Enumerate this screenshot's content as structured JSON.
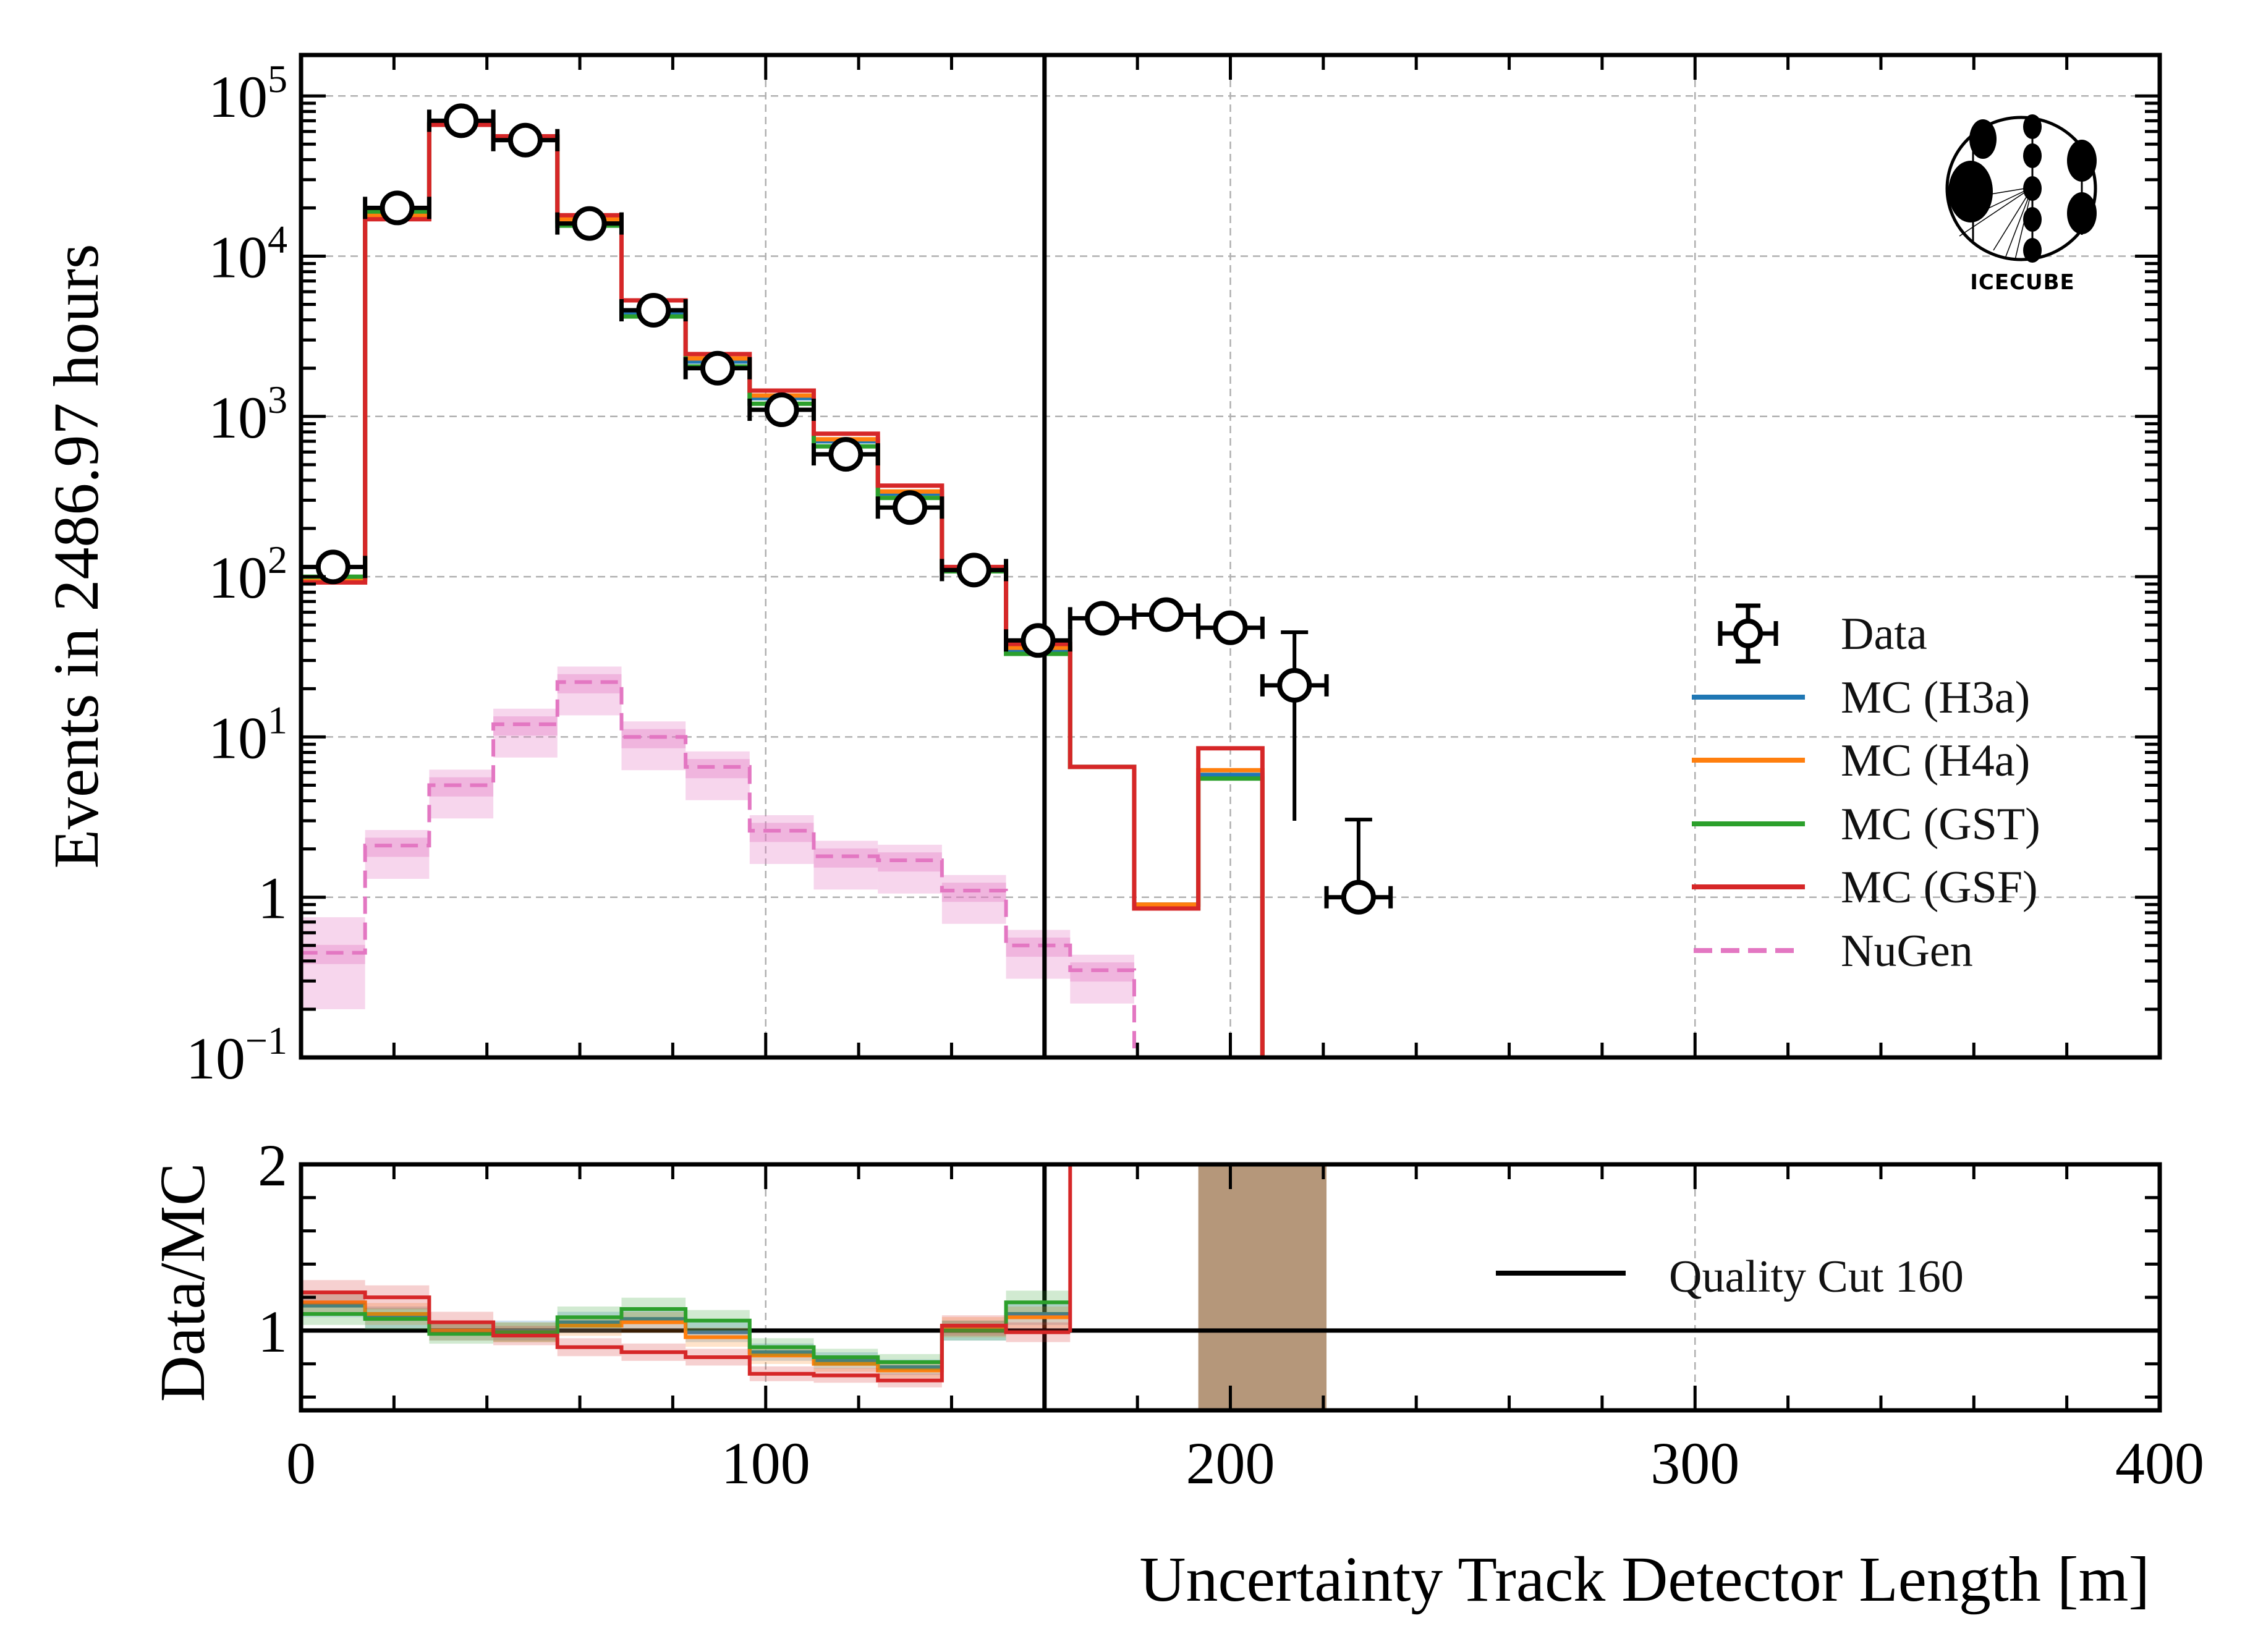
{
  "chart_data": [
    {
      "type": "line",
      "subtype": "step-histogram",
      "panel": "main",
      "title": "",
      "xlabel": "Uncertainty Track Detector Length [m]",
      "ylabel": "Events in 2486.97 hours",
      "yscale": "log",
      "xlim": [
        0,
        400
      ],
      "ylim": [
        0.1,
        180000
      ],
      "x_ticks": [
        "0",
        "100",
        "200",
        "300",
        "400"
      ],
      "y_ticks": [
        {
          "value": 0.1,
          "base": "10",
          "exp": "−1"
        },
        {
          "value": 1,
          "base": "1",
          "exp": ""
        },
        {
          "value": 10,
          "base": "10",
          "exp": "1"
        },
        {
          "value": 100,
          "base": "10",
          "exp": "2"
        },
        {
          "value": 1000,
          "base": "10",
          "exp": "3"
        },
        {
          "value": 10000,
          "base": "10",
          "exp": "4"
        },
        {
          "value": 100000,
          "base": "10",
          "exp": "5"
        }
      ],
      "grid": true,
      "bin_edges": [
        0,
        13.79,
        27.59,
        41.38,
        55.17,
        68.97,
        82.76,
        96.55,
        110.34,
        124.14,
        137.93,
        151.72,
        165.52,
        179.31,
        193.1,
        206.9,
        220.69,
        234.48
      ],
      "series": [
        {
          "name": "Data",
          "style": "points",
          "color": "#000000",
          "values": [
            115,
            20000,
            70000,
            53000,
            16000,
            4600,
            2000,
            1100,
            580,
            270,
            110,
            40,
            55,
            58,
            48,
            21,
            1
          ],
          "yerr_high": [
            null,
            null,
            null,
            null,
            null,
            null,
            null,
            null,
            null,
            null,
            null,
            null,
            null,
            null,
            null,
            24,
            2.05
          ],
          "yerr_low": [
            null,
            null,
            null,
            null,
            null,
            null,
            null,
            null,
            null,
            null,
            null,
            null,
            null,
            null,
            null,
            18,
            0.1
          ]
        },
        {
          "name": "MC (H3a)",
          "style": "step",
          "color": "#1f77b4",
          "values": [
            98,
            18500,
            67000,
            55000,
            16500,
            4400,
            2200,
            1300,
            700,
            330,
            110,
            35,
            6.5,
            0.9,
            5.8,
            null,
            null
          ]
        },
        {
          "name": "MC (H4a)",
          "style": "step",
          "color": "#ff7f0e",
          "values": [
            96,
            18000,
            66000,
            55000,
            17000,
            4600,
            2300,
            1350,
            720,
            340,
            112,
            36,
            6.5,
            0.9,
            6.2,
            null,
            null
          ]
        },
        {
          "name": "MC (GST)",
          "style": "step",
          "color": "#2ca02c",
          "values": [
            100,
            19000,
            69000,
            55500,
            15500,
            4200,
            2050,
            1200,
            650,
            310,
            108,
            33,
            6.5,
            0.85,
            5.5,
            null,
            null
          ]
        },
        {
          "name": "MC (GSF)",
          "style": "step",
          "color": "#d62728",
          "values": [
            92,
            17000,
            66000,
            56000,
            18000,
            5300,
            2450,
            1450,
            780,
            370,
            115,
            38,
            6.5,
            0.85,
            8.5,
            null,
            null
          ]
        },
        {
          "name": "NuGen",
          "style": "dashed-step",
          "color": "#e377c2",
          "values": [
            0.45,
            2.1,
            5.0,
            12,
            22,
            10,
            6.5,
            2.6,
            1.8,
            1.7,
            1.1,
            0.5,
            0.35,
            null,
            null,
            null,
            null
          ]
        }
      ],
      "vline": {
        "x": 160,
        "label": "Quality Cut 160",
        "color": "#000000"
      },
      "legend": {
        "placement": "right",
        "entries": [
          "Data",
          "MC (H3a)",
          "MC (H4a)",
          "MC (GST)",
          "MC (GSF)",
          "NuGen"
        ]
      },
      "annotation": "IceCube"
    },
    {
      "type": "line",
      "subtype": "step-ratio",
      "panel": "ratio",
      "xlabel": "Uncertainty Track Detector Length [m]",
      "ylabel": "Data/MC",
      "xlim": [
        0,
        400
      ],
      "ylim": [
        0.52,
        2
      ],
      "y_ticks": [
        "1",
        "2"
      ],
      "x_ticks": [
        "0",
        "100",
        "200",
        "300",
        "400"
      ],
      "reference_line": 1,
      "series": [
        {
          "name": "MC (H3a)",
          "color": "#1f77b4",
          "values": [
            1.15,
            1.08,
            1.0,
            1.0,
            1.05,
            1.07,
            0.99,
            0.87,
            0.82,
            0.78,
            1.0,
            1.1
          ]
        },
        {
          "name": "MC (H4a)",
          "color": "#ff7f0e",
          "values": [
            1.17,
            1.1,
            1.0,
            0.99,
            1.03,
            1.05,
            0.96,
            0.85,
            0.8,
            0.76,
            1.02,
            1.08
          ]
        },
        {
          "name": "MC (GST)",
          "color": "#2ca02c",
          "values": [
            1.1,
            1.07,
            0.98,
            0.99,
            1.08,
            1.13,
            1.06,
            0.9,
            0.84,
            0.81,
            1.0,
            1.17
          ]
        },
        {
          "name": "MC (GSF)",
          "color": "#d62728",
          "values": [
            1.23,
            1.2,
            1.05,
            0.97,
            0.9,
            0.87,
            0.84,
            0.74,
            0.73,
            0.7,
            1.03,
            0.99
          ]
        }
      ],
      "bands": [
        {
          "x_range": [
            193.1,
            220.69
          ],
          "color": "#b5977a"
        }
      ],
      "legend": {
        "placement": "right",
        "entries": [
          "Quality Cut 160"
        ]
      }
    }
  ]
}
